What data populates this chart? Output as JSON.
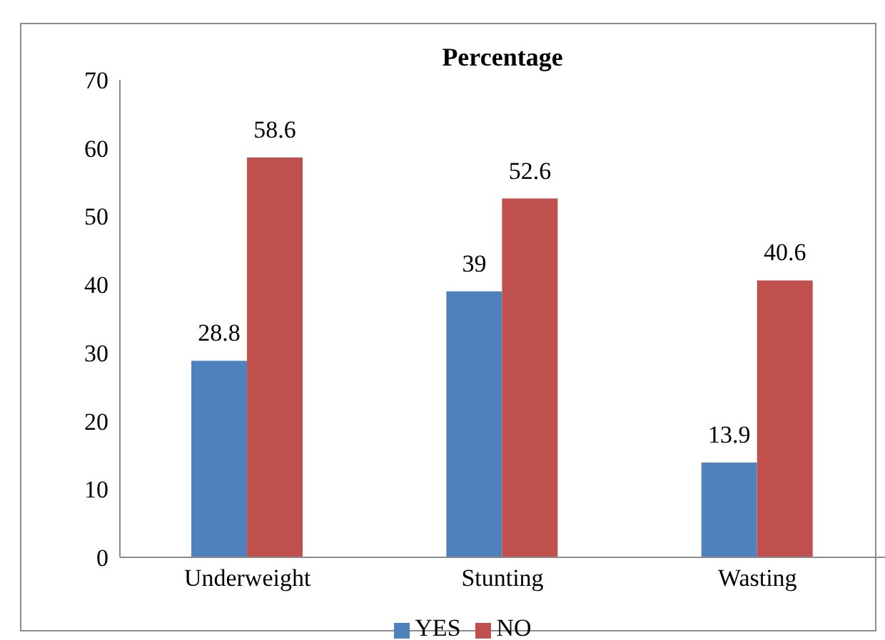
{
  "chart_data": {
    "type": "bar",
    "title": "Percentage",
    "categories": [
      "Underweight",
      "Stunting",
      "Wasting"
    ],
    "series": [
      {
        "name": "YES",
        "color": "#4f81bd",
        "values": [
          28.8,
          39,
          13.9
        ]
      },
      {
        "name": "NO",
        "color": "#c0504d",
        "values": [
          58.6,
          52.6,
          40.6
        ]
      }
    ],
    "ylim": [
      0,
      70
    ],
    "yticks": [
      0,
      10,
      20,
      30,
      40,
      50,
      60,
      70
    ],
    "grid": false,
    "legend": "bottom",
    "data_labels": true
  }
}
